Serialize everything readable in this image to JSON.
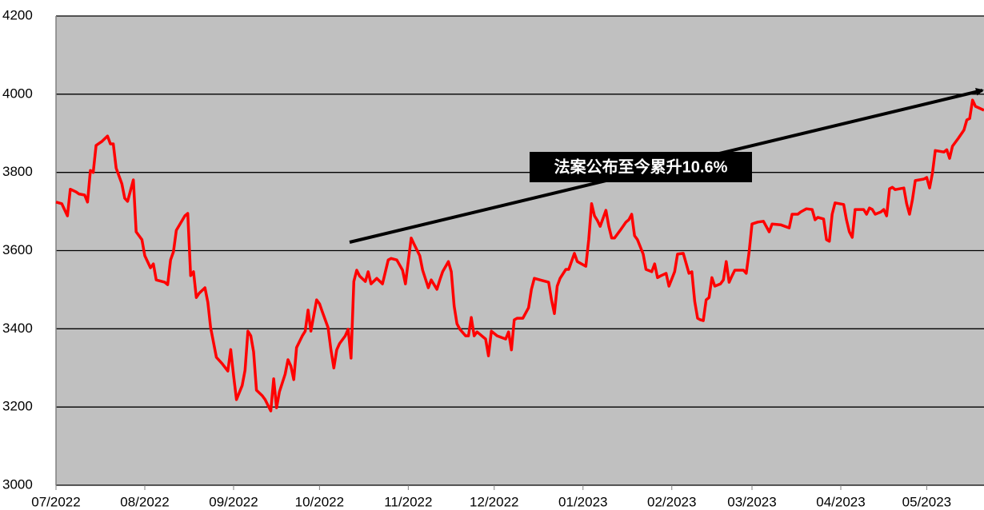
{
  "chart_data": {
    "type": "line",
    "annotation": "法案公布至今累升10.6%",
    "color": "#ff0000",
    "grid": true,
    "xlim": [
      0,
      324
    ],
    "xticks": [
      {
        "value": 0,
        "label": "07/2022"
      },
      {
        "value": 31,
        "label": "08/2022"
      },
      {
        "value": 62,
        "label": "09/2022"
      },
      {
        "value": 92,
        "label": "10/2022"
      },
      {
        "value": 123,
        "label": "11/2022"
      },
      {
        "value": 153,
        "label": "12/2022"
      },
      {
        "value": 184,
        "label": "01/2023"
      },
      {
        "value": 215,
        "label": "02/2023"
      },
      {
        "value": 243,
        "label": "03/2023"
      },
      {
        "value": 274,
        "label": "04/2023"
      },
      {
        "value": 304,
        "label": "05/2023"
      }
    ],
    "ylim": [
      3000,
      4200
    ],
    "yticks": [
      3000,
      3200,
      3400,
      3600,
      3800,
      4000,
      4200
    ],
    "x": [
      0,
      2,
      4,
      5,
      7,
      8,
      10,
      11,
      12,
      13,
      14,
      16,
      18,
      19,
      20,
      21,
      23,
      24,
      25,
      27,
      28,
      30,
      31,
      33,
      34,
      35,
      38,
      39,
      40,
      41,
      42,
      45,
      46,
      47,
      48,
      49,
      50,
      52,
      53,
      54,
      56,
      58,
      60,
      61,
      62,
      63,
      65,
      66,
      67,
      68,
      69,
      70,
      72,
      73,
      75,
      76,
      77,
      78,
      80,
      81,
      82,
      83,
      84,
      86,
      87,
      88,
      89,
      91,
      92,
      93,
      95,
      96,
      97,
      98,
      99,
      101,
      102,
      103,
      104,
      105,
      106,
      108,
      109,
      110,
      112,
      114,
      116,
      117,
      119,
      121,
      122,
      124,
      125,
      127,
      128,
      130,
      131,
      133,
      134,
      135,
      137,
      138,
      139,
      140,
      141,
      143,
      144,
      145,
      146,
      147,
      148,
      150,
      151,
      152,
      154,
      157,
      158,
      159,
      160,
      161,
      163,
      165,
      166,
      167,
      169,
      172,
      173,
      174,
      175,
      176,
      178,
      179,
      181,
      182,
      185,
      186,
      187,
      188,
      189,
      190,
      192,
      193,
      194,
      195,
      197,
      199,
      200,
      201,
      202,
      203,
      205,
      206,
      208,
      209,
      210,
      211,
      213,
      214,
      216,
      217,
      219,
      221,
      222,
      223,
      224,
      225,
      226,
      227,
      228,
      229,
      230,
      232,
      233,
      234,
      235,
      236,
      237,
      240,
      241,
      242,
      243,
      245,
      247,
      249,
      250,
      253,
      256,
      257,
      259,
      260,
      262,
      264,
      265,
      266,
      268,
      269,
      270,
      271,
      272,
      275,
      276,
      277,
      278,
      279,
      282,
      283,
      284,
      285,
      286,
      288,
      289,
      290,
      291,
      292,
      293,
      296,
      297,
      298,
      299,
      300,
      303,
      304,
      305,
      306,
      307,
      310,
      311,
      312,
      313,
      315,
      317,
      318,
      319,
      320,
      321,
      324
    ],
    "values": [
      3724,
      3720,
      3689,
      3757,
      3750,
      3745,
      3742,
      3724,
      3805,
      3800,
      3869,
      3879,
      3893,
      3873,
      3873,
      3811,
      3771,
      3734,
      3726,
      3781,
      3648,
      3628,
      3587,
      3556,
      3566,
      3525,
      3519,
      3513,
      3576,
      3597,
      3652,
      3689,
      3695,
      3536,
      3546,
      3480,
      3491,
      3505,
      3468,
      3403,
      3327,
      3311,
      3292,
      3347,
      3280,
      3219,
      3255,
      3294,
      3394,
      3382,
      3341,
      3243,
      3229,
      3219,
      3190,
      3272,
      3198,
      3239,
      3284,
      3321,
      3305,
      3270,
      3352,
      3382,
      3394,
      3448,
      3394,
      3474,
      3464,
      3443,
      3403,
      3346,
      3300,
      3346,
      3362,
      3382,
      3399,
      3325,
      3521,
      3550,
      3535,
      3521,
      3546,
      3515,
      3529,
      3515,
      3576,
      3580,
      3576,
      3550,
      3515,
      3632,
      3617,
      3587,
      3550,
      3505,
      3525,
      3501,
      3525,
      3546,
      3572,
      3546,
      3458,
      3413,
      3399,
      3382,
      3382,
      3429,
      3382,
      3392,
      3386,
      3374,
      3331,
      3394,
      3382,
      3374,
      3392,
      3346,
      3423,
      3427,
      3427,
      3454,
      3501,
      3529,
      3525,
      3519,
      3474,
      3439,
      3509,
      3529,
      3552,
      3552,
      3593,
      3572,
      3560,
      3628,
      3720,
      3689,
      3677,
      3662,
      3703,
      3662,
      3632,
      3632,
      3652,
      3673,
      3679,
      3693,
      3638,
      3628,
      3591,
      3552,
      3546,
      3566,
      3531,
      3535,
      3542,
      3509,
      3546,
      3591,
      3593,
      3542,
      3546,
      3470,
      3427,
      3423,
      3421,
      3474,
      3480,
      3531,
      3509,
      3515,
      3525,
      3572,
      3519,
      3535,
      3550,
      3550,
      3542,
      3597,
      3668,
      3673,
      3675,
      3648,
      3668,
      3666,
      3658,
      3693,
      3693,
      3699,
      3707,
      3705,
      3679,
      3685,
      3681,
      3628,
      3624,
      3693,
      3722,
      3718,
      3679,
      3648,
      3634,
      3705,
      3705,
      3693,
      3709,
      3705,
      3693,
      3699,
      3705,
      3689,
      3758,
      3762,
      3756,
      3760,
      3720,
      3693,
      3730,
      3779,
      3783,
      3787,
      3760,
      3799,
      3856,
      3852,
      3858,
      3836,
      3867,
      3887,
      3908,
      3934,
      3938,
      3985,
      3969,
      3959
    ]
  }
}
